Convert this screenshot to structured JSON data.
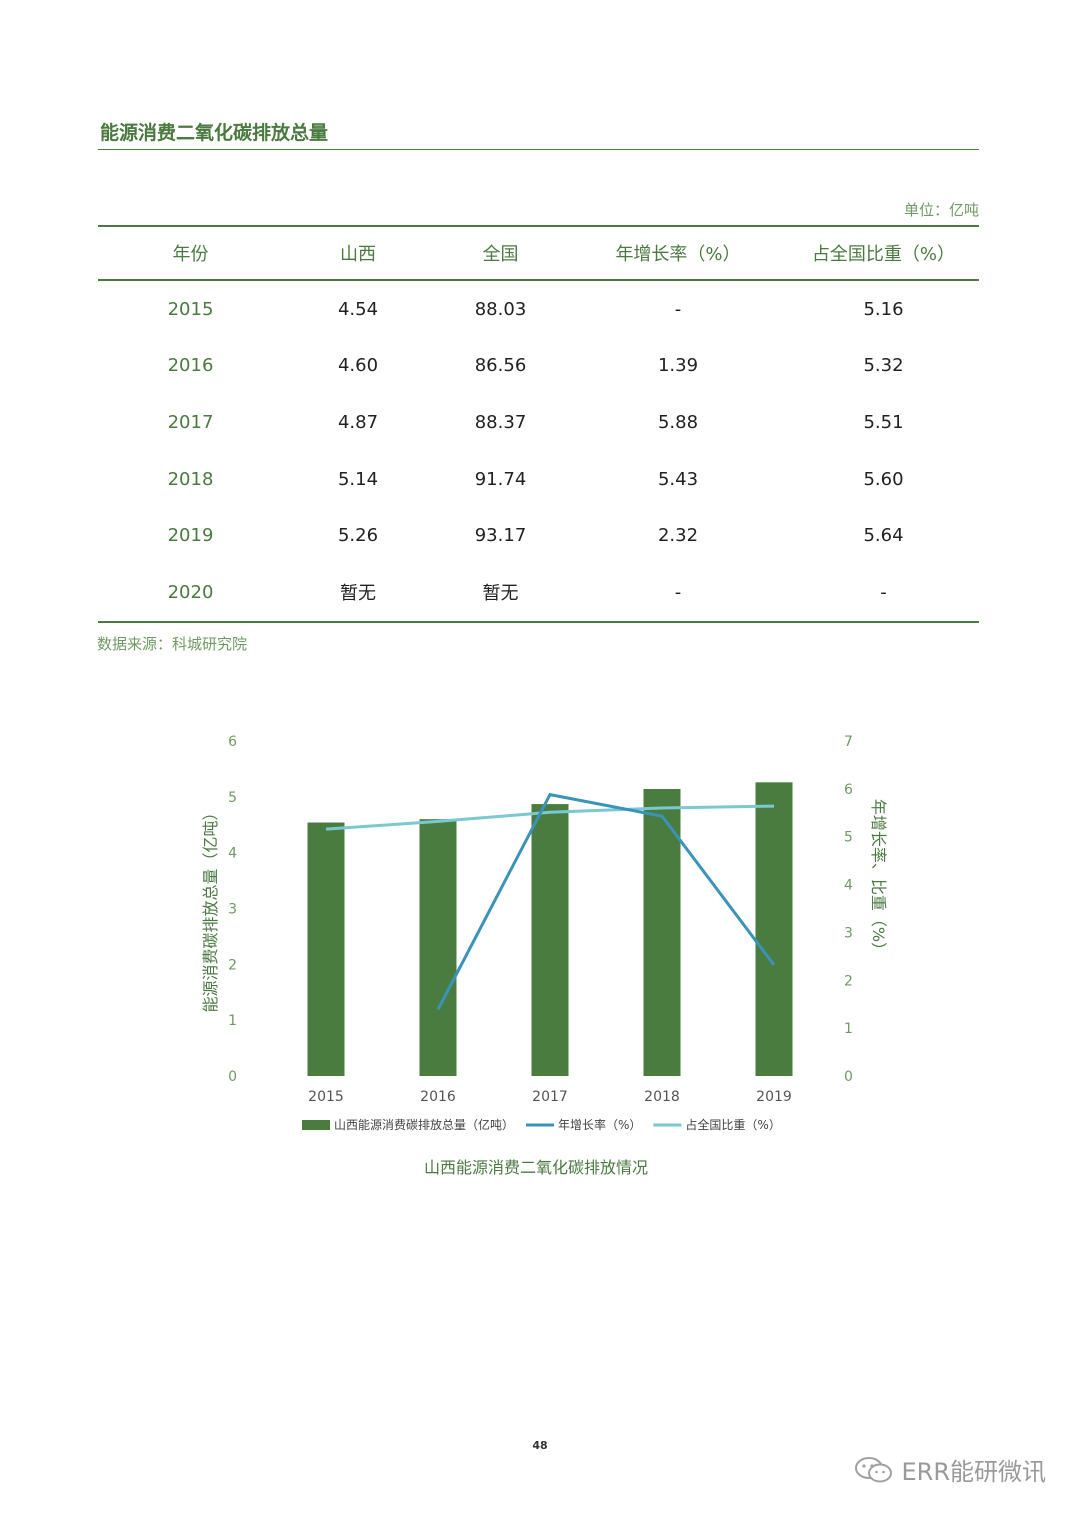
{
  "page": {
    "section_title": "能源消费二氧化碳排放总量",
    "unit": "单位：亿吨",
    "source": "数据来源：科城研究院",
    "chart_caption": "山西能源消费二氧化碳排放情况",
    "page_number": "48",
    "watermark": "ERR能研微讯"
  },
  "table": {
    "headers": [
      "年份",
      "山西",
      "全国",
      "年增长率（%）",
      "占全国比重（%）"
    ],
    "rows": [
      [
        "2015",
        "4.54",
        "88.03",
        "-",
        "5.16"
      ],
      [
        "2016",
        "4.60",
        "86.56",
        "1.39",
        "5.32"
      ],
      [
        "2017",
        "4.87",
        "88.37",
        "5.88",
        "5.51"
      ],
      [
        "2018",
        "5.14",
        "91.74",
        "5.43",
        "5.60"
      ],
      [
        "2019",
        "5.26",
        "93.17",
        "2.32",
        "5.64"
      ],
      [
        "2020",
        "暂无",
        "暂无",
        "-",
        "-"
      ]
    ]
  },
  "chart_data": {
    "type": "bar",
    "categories": [
      "2015",
      "2016",
      "2017",
      "2018",
      "2019"
    ],
    "series": [
      {
        "name": "山西能源消费碳排放总量（亿吨）",
        "type": "bar",
        "axis": "left",
        "color": "#4a7c40",
        "values": [
          4.54,
          4.6,
          4.87,
          5.14,
          5.26
        ]
      },
      {
        "name": "年增长率（%）",
        "type": "line",
        "axis": "right",
        "color": "#3a93b8",
        "values": [
          null,
          1.39,
          5.88,
          5.43,
          2.32
        ]
      },
      {
        "name": "占全国比重（%）",
        "type": "line",
        "axis": "right",
        "color": "#7ac8d2",
        "values": [
          5.16,
          5.32,
          5.51,
          5.6,
          5.64
        ]
      }
    ],
    "ylabel": "能源消费碳排放总量（亿吨）",
    "ylabel_right": "年增长率、比重（%）",
    "ylim": [
      0,
      6
    ],
    "ylim_right": [
      0,
      7
    ],
    "yticks": [
      "0",
      "1",
      "2",
      "3",
      "4",
      "5",
      "6"
    ],
    "yticks_right": [
      "0",
      "1",
      "2",
      "3",
      "4",
      "5",
      "6",
      "7"
    ],
    "legend_position": "bottom",
    "grid": false
  }
}
